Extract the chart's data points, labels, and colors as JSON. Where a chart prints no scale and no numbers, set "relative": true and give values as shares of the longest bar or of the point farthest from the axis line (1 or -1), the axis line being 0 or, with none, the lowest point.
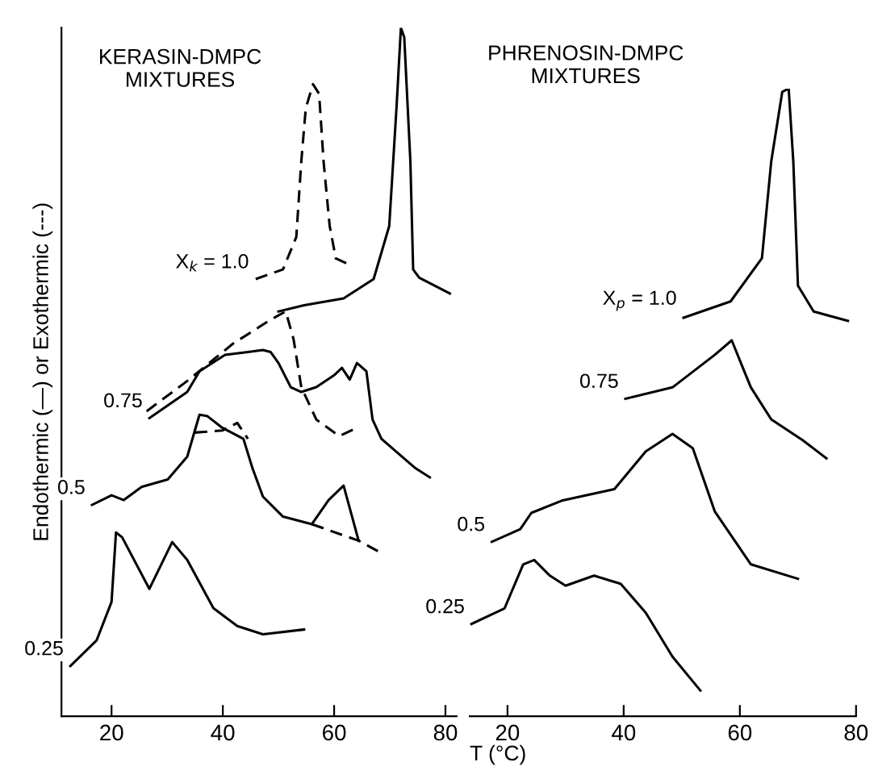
{
  "chart_data": [
    {
      "type": "line",
      "relative": true,
      "title": "KERASIN-DMPC\nMIXTURES",
      "ylabel": "Endothermic (—) or Exothermic (---)",
      "xlim": [
        11,
        82
      ],
      "xticks": [
        20,
        40,
        60,
        80
      ],
      "tick_labels": "x",
      "grid": false,
      "legend": false,
      "marker": "none",
      "series": [
        {
          "color": "#000000",
          "line_style": "solid",
          "x": [
            50.0,
            54.6,
            61.7,
            67.1,
            69.9,
            71.2,
            72.0,
            72.6,
            73.7,
            74.2,
            75.3,
            80.8
          ],
          "values": [
            0.588,
            0.597,
            0.607,
            0.635,
            0.712,
            0.883,
            1.0,
            0.986,
            0.806,
            0.649,
            0.637,
            0.614
          ]
        },
        {
          "name": "X$_{k}$ = 1.0",
          "color": "#000000",
          "line_style": "dashed",
          "x": [
            45.9,
            50.8,
            53.2,
            54.1,
            54.9,
            56.2,
            57.3,
            58.1,
            59.2,
            60.3,
            62.2
          ],
          "values": [
            0.635,
            0.649,
            0.696,
            0.806,
            0.883,
            0.918,
            0.904,
            0.806,
            0.712,
            0.665,
            0.658
          ]
        },
        {
          "name": "0.75",
          "color": "#000000",
          "line_style": "solid",
          "x": [
            26.8,
            33.6,
            35.8,
            40.4,
            44.5,
            47.2,
            48.6,
            50.0,
            52.2,
            54.1,
            56.8,
            60.1,
            61.4,
            62.8,
            64.1,
            65.8,
            66.9,
            68.5,
            74.5,
            77.2
          ],
          "values": [
            0.433,
            0.471,
            0.501,
            0.525,
            0.529,
            0.532,
            0.529,
            0.513,
            0.478,
            0.471,
            0.478,
            0.496,
            0.506,
            0.489,
            0.513,
            0.501,
            0.431,
            0.403,
            0.361,
            0.347
          ]
        },
        {
          "color": "#000000",
          "line_style": "dashed",
          "x": [
            26.3,
            33.6,
            41.8,
            48.6,
            51.3,
            52.7,
            54.1,
            56.8,
            60.9,
            63.6
          ],
          "values": [
            0.443,
            0.487,
            0.541,
            0.576,
            0.588,
            0.548,
            0.478,
            0.431,
            0.407,
            0.417
          ]
        },
        {
          "name": "0.5",
          "color": "#000000",
          "line_style": "solid",
          "x": [
            16.5,
            20.0,
            22.2,
            25.4,
            30.1,
            33.6,
            35.8,
            37.2,
            39.9,
            43.7,
            45.3,
            47.2,
            50.8,
            56.0,
            59.0,
            61.7,
            64.4
          ],
          "values": [
            0.307,
            0.321,
            0.314,
            0.333,
            0.344,
            0.377,
            0.438,
            0.436,
            0.419,
            0.403,
            0.361,
            0.319,
            0.29,
            0.279,
            0.314,
            0.335,
            0.255
          ]
        },
        {
          "color": "#000000",
          "line_style": "dashed",
          "x": [
            35.0,
            39.9,
            42.6,
            44.5,
            50.0,
            56.0,
            64.4,
            68.5
          ],
          "values": [
            0.412,
            0.415,
            0.426,
            0.403,
            null,
            0.279,
            0.255,
            0.237
          ]
        },
        {
          "name": "0.25",
          "color": "#000000",
          "line_style": "solid",
          "x": [
            12.6,
            17.3,
            20.0,
            20.8,
            21.9,
            26.8,
            30.9,
            33.6,
            38.3,
            42.6,
            47.2,
            54.6
          ],
          "values": [
            0.073,
            0.11,
            0.166,
            0.267,
            0.26,
            0.185,
            0.253,
            0.227,
            0.157,
            0.131,
            0.119,
            0.126
          ]
        }
      ]
    },
    {
      "type": "line",
      "relative": true,
      "title": "PHRENOSIN-DMPC\nMIXTURES",
      "xlabel": "T (°C)",
      "xlim": [
        13.5,
        80
      ],
      "xticks": [
        20,
        40,
        60,
        80
      ],
      "tick_labels": "x",
      "grid": false,
      "legend": false,
      "marker": "none",
      "series": [
        {
          "name": "X$_{p}$ = 1.0",
          "color": "#000000",
          "line_style": "solid",
          "x": [
            50.3,
            58.4,
            63.8,
            65.4,
            67.3,
            68.4,
            69.2,
            70.0,
            72.7,
            78.6
          ],
          "values": [
            0.635,
            0.661,
            0.73,
            0.884,
            0.995,
            1.0,
            0.884,
            0.686,
            0.645,
            0.63
          ]
        },
        {
          "name": "0.75",
          "color": "#000000",
          "line_style": "solid",
          "x": [
            40.3,
            48.4,
            55.7,
            58.6,
            61.1,
            61.9,
            65.4,
            70.8,
            74.9
          ],
          "values": [
            0.506,
            0.524,
            0.576,
            0.599,
            0.542,
            0.524,
            0.473,
            0.44,
            0.411
          ]
        },
        {
          "name": "0.5",
          "color": "#000000",
          "line_style": "solid",
          "x": [
            17.3,
            22.2,
            24.1,
            29.5,
            38.4,
            43.8,
            48.4,
            51.9,
            55.7,
            61.9,
            70.0
          ],
          "values": [
            0.278,
            0.298,
            0.324,
            0.344,
            0.362,
            0.422,
            0.45,
            0.427,
            0.326,
            0.242,
            0.219
          ]
        },
        {
          "name": "0.25",
          "color": "#000000",
          "line_style": "solid",
          "x": [
            13.8,
            19.5,
            22.7,
            24.6,
            27.3,
            30.0,
            34.9,
            39.5,
            43.8,
            48.4,
            53.2
          ],
          "values": [
            0.147,
            0.172,
            0.242,
            0.249,
            0.224,
            0.208,
            0.224,
            0.211,
            0.165,
            0.095,
            0.041
          ]
        }
      ]
    }
  ]
}
